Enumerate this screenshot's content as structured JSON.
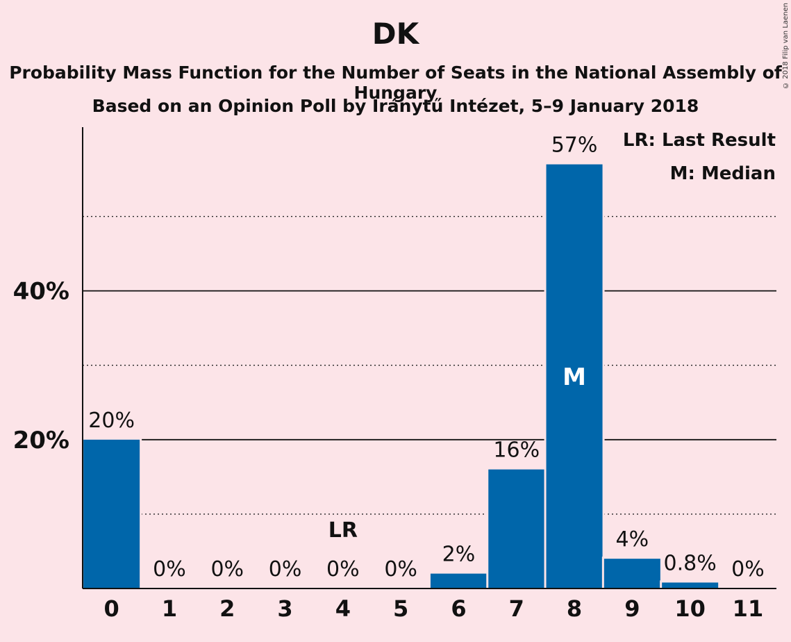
{
  "header": {
    "title": "DK",
    "subtitle_1": "Probability Mass Function for the Number of Seats in the National Assembly of Hungary",
    "subtitle_2": "Based on an Opinion Poll by Iránytű Intézet, 5–9 January 2018",
    "copyright": "© 2018 Filip van Laenen"
  },
  "legend": {
    "lr": "LR: Last Result",
    "m": "M: Median"
  },
  "colors": {
    "bar": "#0066aa",
    "background": "#fce4e8",
    "text": "#111111"
  },
  "chart_data": {
    "type": "bar",
    "title": "DK",
    "categories": [
      "0",
      "1",
      "2",
      "3",
      "4",
      "5",
      "6",
      "7",
      "8",
      "9",
      "10",
      "11"
    ],
    "values": [
      20,
      0,
      0,
      0,
      0,
      0,
      2,
      16,
      57,
      4,
      0.8,
      0
    ],
    "value_labels": [
      "20%",
      "0%",
      "0%",
      "0%",
      "0%",
      "0%",
      "2%",
      "16%",
      "57%",
      "4%",
      "0.8%",
      "0%"
    ],
    "ylim": [
      0,
      62
    ],
    "y_ticks": [
      {
        "value": 20,
        "label": "20%"
      },
      {
        "value": 40,
        "label": "40%"
      }
    ],
    "minor_gridlines": [
      10,
      30,
      50
    ],
    "last_result": {
      "category": "4",
      "label": "LR"
    },
    "median": {
      "category": "8",
      "label": "M"
    },
    "legend_position": "top-right"
  }
}
